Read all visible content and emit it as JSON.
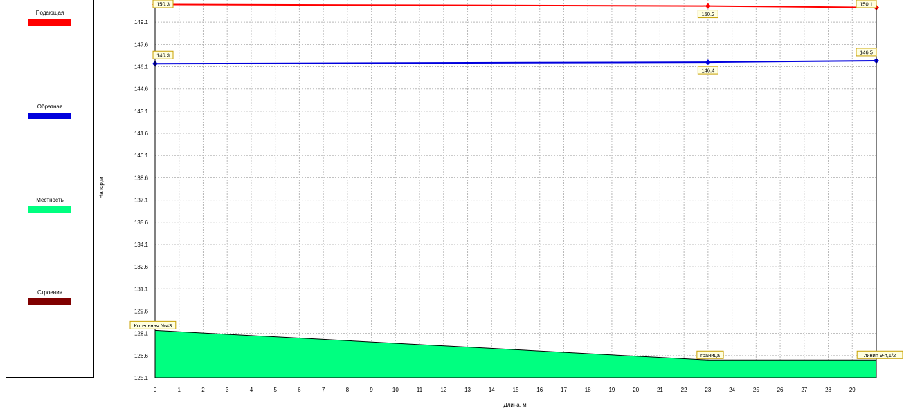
{
  "legend": {
    "items": [
      {
        "label": "Подающая",
        "color": "#ff0000"
      },
      {
        "label": "Обратная",
        "color": "#0000dd"
      },
      {
        "label": "Местность",
        "color": "#00ff80"
      },
      {
        "label": "Строения",
        "color": "#800000"
      }
    ]
  },
  "chart_data": {
    "type": "line",
    "title": "",
    "xlabel": "Длина, м",
    "ylabel": "Напор,м",
    "xlim": [
      0,
      30
    ],
    "ylim": [
      125.1,
      150.6
    ],
    "x_ticks": [
      "0",
      "1",
      "2",
      "3",
      "4",
      "5",
      "6",
      "7",
      "8",
      "9",
      "10",
      "11",
      "12",
      "13",
      "14",
      "15",
      "16",
      "17",
      "18",
      "19",
      "20",
      "21",
      "22",
      "23",
      "24",
      "25",
      "26",
      "27",
      "28",
      "29"
    ],
    "y_ticks": [
      "125.1",
      "126.6",
      "128.1",
      "129.6",
      "131.1",
      "132.6",
      "134.1",
      "135.6",
      "137.1",
      "138.6",
      "140.1",
      "141.6",
      "143.1",
      "144.6",
      "146.1",
      "147.6",
      "149.1"
    ],
    "grid": true,
    "legend_position": "left",
    "series": [
      {
        "name": "Подающая",
        "color": "#ff0000",
        "points": [
          {
            "x": 0,
            "y": 150.3,
            "label": "150.3"
          },
          {
            "x": 23,
            "y": 150.2,
            "label": "150.2"
          },
          {
            "x": 30,
            "y": 150.1,
            "label": "150.1"
          }
        ]
      },
      {
        "name": "Обратная",
        "color": "#0000dd",
        "points": [
          {
            "x": 0,
            "y": 146.3,
            "label": "146.3"
          },
          {
            "x": 23,
            "y": 146.4,
            "label": "146.4"
          },
          {
            "x": 30,
            "y": 146.5,
            "label": "146.5"
          }
        ]
      }
    ],
    "terrain": {
      "name": "Местность",
      "color": "#00ff80",
      "points": [
        {
          "x": 0,
          "y": 128.3
        },
        {
          "x": 23,
          "y": 126.3
        },
        {
          "x": 30,
          "y": 126.3
        }
      ]
    },
    "annotations": [
      {
        "x": 0,
        "y": 128.3,
        "text": "Котельная №43"
      },
      {
        "x": 23,
        "y": 126.3,
        "text": "граница"
      },
      {
        "x": 30,
        "y": 126.3,
        "text": "линия 9-я,1/2"
      }
    ]
  }
}
